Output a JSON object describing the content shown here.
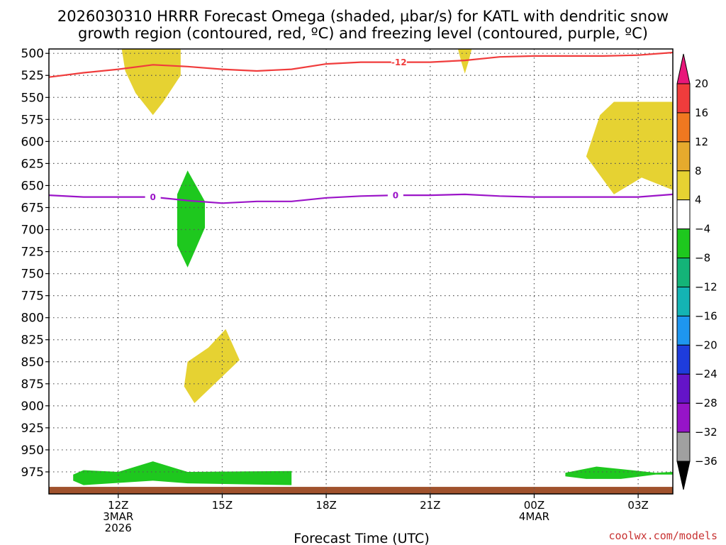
{
  "title_lines": [
    "2026030310 HRRR Forecast Omega (shaded, µbar/s) for KATL with dendritic snow",
    "growth region (contoured, red, ºC) and freezing level (contoured, purple, ºC)"
  ],
  "credit": "coolwx.com/models",
  "chart_data": {
    "type": "heatmap",
    "title": "2026030310 HRRR Forecast Omega (shaded, µbar/s) for KATL with dendritic snow growth region (contoured, red, ºC) and freezing level (contoured, purple, ºC)",
    "xlabel": "Forecast Time (UTC)",
    "ylabel": "",
    "x_unit": "hours UTC from 00Z 3MAR 2026",
    "xlim": [
      10,
      28
    ],
    "ylim": [
      1000,
      495
    ],
    "y_axis": "pressure (mb), inverted",
    "grid": true,
    "y_ticks": [
      500,
      525,
      550,
      575,
      600,
      625,
      650,
      675,
      700,
      725,
      750,
      775,
      800,
      825,
      850,
      875,
      900,
      925,
      950,
      975
    ],
    "x_ticks": [
      {
        "x": 12,
        "lines": [
          "12Z",
          "3MAR",
          "2026"
        ]
      },
      {
        "x": 15,
        "lines": [
          "15Z"
        ]
      },
      {
        "x": 18,
        "lines": [
          "18Z"
        ]
      },
      {
        "x": 21,
        "lines": [
          "21Z"
        ]
      },
      {
        "x": 24,
        "lines": [
          "00Z",
          "4MAR"
        ]
      },
      {
        "x": 27,
        "lines": [
          "03Z"
        ]
      }
    ],
    "colorbar": {
      "levels": [
        20,
        16,
        12,
        8,
        4,
        -4,
        -8,
        -12,
        -16,
        -20,
        -24,
        -28,
        -32,
        -36
      ],
      "colors": [
        "#e8177a",
        "#f03c3c",
        "#f07820",
        "#e6aa2d",
        "#e6d232",
        "#ffffff",
        "#1ec81e",
        "#14b478",
        "#14b4b4",
        "#1e96f0",
        "#1e3cdc",
        "#6414c8",
        "#9614c8",
        "#a0a0a0",
        "#000000"
      ]
    },
    "omega_regions": [
      {
        "sign": "positive",
        "color": "#e6d232",
        "points": [
          [
            12.1,
            495
          ],
          [
            13.8,
            495
          ],
          [
            13.8,
            525
          ],
          [
            13.3,
            555
          ],
          [
            13.0,
            570
          ],
          [
            12.5,
            545
          ],
          [
            12.2,
            520
          ]
        ]
      },
      {
        "sign": "positive",
        "color": "#e6d232",
        "points": [
          [
            21.8,
            495
          ],
          [
            22.2,
            495
          ],
          [
            22.1,
            510
          ],
          [
            22.0,
            523
          ],
          [
            21.9,
            510
          ]
        ]
      },
      {
        "sign": "positive",
        "color": "#e6d232",
        "points": [
          [
            25.9,
            570
          ],
          [
            26.3,
            555
          ],
          [
            28.0,
            555
          ],
          [
            28.0,
            655
          ],
          [
            27.1,
            641
          ],
          [
            26.3,
            660
          ],
          [
            25.5,
            617
          ]
        ]
      },
      {
        "sign": "positive",
        "color": "#e6d232",
        "points": [
          [
            14.0,
            850
          ],
          [
            14.6,
            834
          ],
          [
            15.1,
            813
          ],
          [
            15.5,
            848
          ],
          [
            14.2,
            897
          ],
          [
            13.9,
            878
          ]
        ]
      },
      {
        "sign": "negative",
        "color": "#1ec81e",
        "points": [
          [
            14.0,
            633
          ],
          [
            14.5,
            668
          ],
          [
            14.5,
            698
          ],
          [
            14.0,
            743
          ],
          [
            13.7,
            718
          ],
          [
            13.7,
            660
          ]
        ]
      },
      {
        "sign": "negative",
        "color": "#1ec81e",
        "points": [
          [
            10.7,
            978
          ],
          [
            11.0,
            973
          ],
          [
            12.0,
            975
          ],
          [
            13.0,
            963
          ],
          [
            14.0,
            975
          ],
          [
            17.0,
            974
          ],
          [
            17.0,
            990
          ],
          [
            14.0,
            988
          ],
          [
            13.0,
            985
          ],
          [
            11.0,
            990
          ],
          [
            10.7,
            985
          ]
        ]
      },
      {
        "sign": "negative",
        "color": "#1ec81e",
        "points": [
          [
            24.9,
            976
          ],
          [
            25.8,
            969
          ],
          [
            26.8,
            973
          ],
          [
            27.5,
            976
          ],
          [
            28.0,
            975
          ],
          [
            28.0,
            978
          ],
          [
            27.5,
            978
          ],
          [
            26.5,
            983
          ],
          [
            25.5,
            983
          ],
          [
            24.9,
            980
          ]
        ]
      }
    ],
    "ground_strip": {
      "color": "#a0522d",
      "from_mb": 992,
      "to_mb": 1000
    },
    "series": [
      {
        "name": "-12",
        "color": "#f03c3c",
        "label_at_x": 20.1,
        "x": [
          10.0,
          11.0,
          12.0,
          13.0,
          14.0,
          15.0,
          16.0,
          17.0,
          18.0,
          19.0,
          20.0,
          21.0,
          22.0,
          23.0,
          24.0,
          25.0,
          26.0,
          27.0,
          28.0
        ],
        "y": [
          527,
          522,
          518,
          513,
          515,
          518,
          520,
          518,
          512,
          510,
          510,
          510,
          508,
          504,
          503,
          503,
          503,
          502,
          499
        ]
      },
      {
        "name": "0",
        "color": "#9b14c8",
        "label_at_x": [
          13.0,
          20.0
        ],
        "x": [
          10.0,
          11.0,
          12.0,
          13.0,
          14.0,
          15.0,
          16.0,
          17.0,
          18.0,
          19.0,
          20.0,
          21.0,
          22.0,
          23.0,
          24.0,
          25.0,
          26.0,
          27.0,
          28.0
        ],
        "y": [
          661,
          663,
          663,
          663,
          667,
          670,
          668,
          668,
          664,
          662,
          661,
          661,
          660,
          662,
          663,
          663,
          663,
          663,
          660
        ]
      }
    ]
  }
}
